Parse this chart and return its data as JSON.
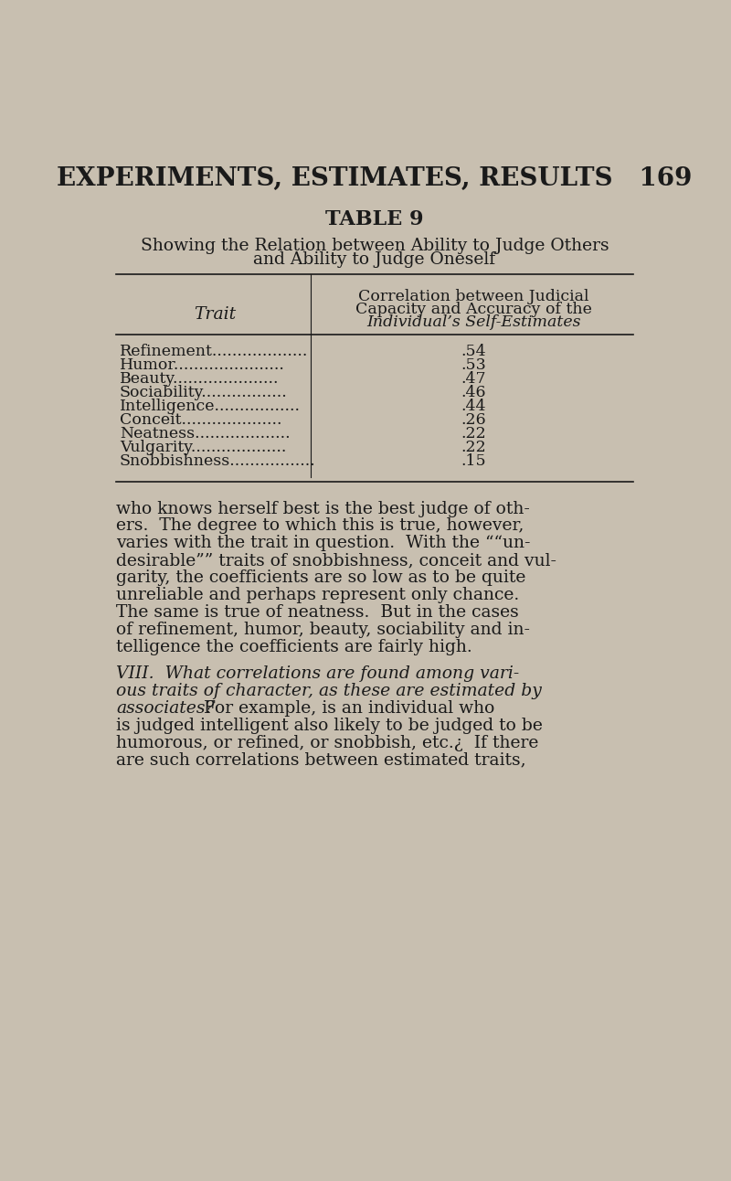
{
  "bg_color": "#c8bfb0",
  "page_title": "EXPERIMENTS, ESTIMATES, RESULTS   169",
  "table_title": "TABLE 9",
  "subtitle_line1": "Showing the Relation between Ability to Judge Others",
  "subtitle_line2": "and Ability to Judge Oneself",
  "col1_header": "Trait",
  "col2_header_line1": "Correlation between Judicial",
  "col2_header_line2": "Capacity and Accuracy of the",
  "col2_header_line3": "Individual’s Self-Estimates",
  "traits_with_dots": [
    "Refinement...................",
    "Humor......................",
    "Beauty.....................",
    "Sociability.................",
    "Intelligence.................",
    "Conceit....................",
    "Neatness...................",
    "Vulgarity...................",
    "Snobbishness................."
  ],
  "values": [
    ".54",
    ".53",
    ".47",
    ".46",
    ".44",
    ".26",
    ".22",
    ".22",
    ".15"
  ],
  "body_lines": [
    "who knows herself best is the best judge of oth-",
    "ers.  The degree to which this is true, however,",
    "varies with the trait in question.  With the ““un-",
    "desirable”” traits of snobbishness, conceit and vul-",
    "garity, the coefficients are so low as to be quite",
    "unreliable and perhaps represent only chance.",
    "The same is true of neatness.  But in the cases",
    "of refinement, humor, beauty, sociability and in-",
    "telligence the coefficients are fairly high."
  ],
  "italic_lines": [
    "VIII.  What correlations are found among vari-",
    "ous traits of character, as these are estimated by"
  ],
  "italic_associates": "associates?",
  "mixed_rest": "  For example, is an individual who",
  "body_lines2": [
    "is judged intelligent also likely to be judged to be",
    "humorous, or refined, or snobbish, etc.¿  If there",
    "are such correlations between estimated traits,"
  ]
}
